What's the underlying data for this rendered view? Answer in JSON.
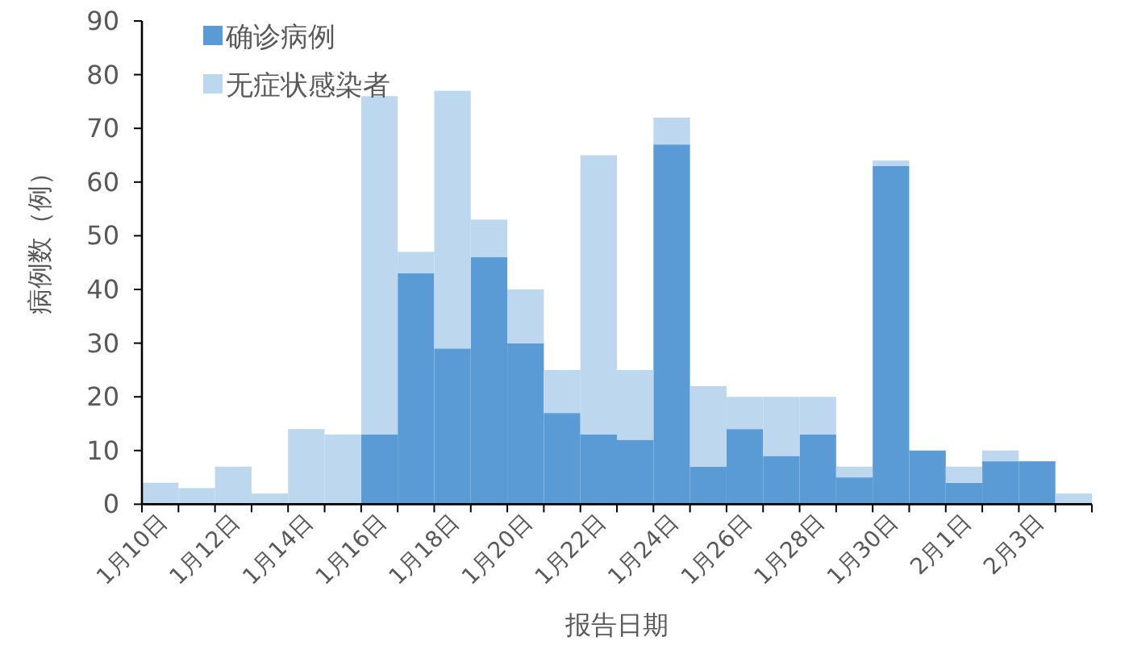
{
  "chart_data": {
    "type": "bar",
    "stacked": true,
    "categories": [
      "1月10日",
      null,
      "1月12日",
      null,
      "1月14日",
      null,
      "1月16日",
      null,
      "1月18日",
      null,
      "1月20日",
      null,
      "1月22日",
      null,
      "1月24日",
      null,
      "1月26日",
      null,
      "1月28日",
      null,
      "1月30日",
      null,
      "2月1日",
      null,
      "2月3日",
      null
    ],
    "series": [
      {
        "name": "确诊病例",
        "color": "#5b9bd5",
        "values": [
          0,
          0,
          0,
          0,
          0,
          0,
          13,
          43,
          29,
          46,
          30,
          17,
          13,
          12,
          67,
          7,
          14,
          9,
          13,
          5,
          63,
          10,
          4,
          8,
          8,
          0
        ]
      },
      {
        "name": "无症状感染者",
        "color": "#bdd7ee",
        "values": [
          4,
          3,
          7,
          2,
          14,
          13,
          63,
          4,
          48,
          7,
          10,
          8,
          52,
          13,
          5,
          15,
          6,
          11,
          7,
          2,
          1,
          0,
          3,
          2,
          0,
          2
        ]
      }
    ],
    "ylim": [
      0,
      90
    ],
    "yticks": [
      0,
      10,
      20,
      30,
      40,
      50,
      60,
      70,
      80,
      90
    ],
    "xlabel": "报告日期",
    "ylabel": "病例数（例）",
    "legend": "top left"
  }
}
